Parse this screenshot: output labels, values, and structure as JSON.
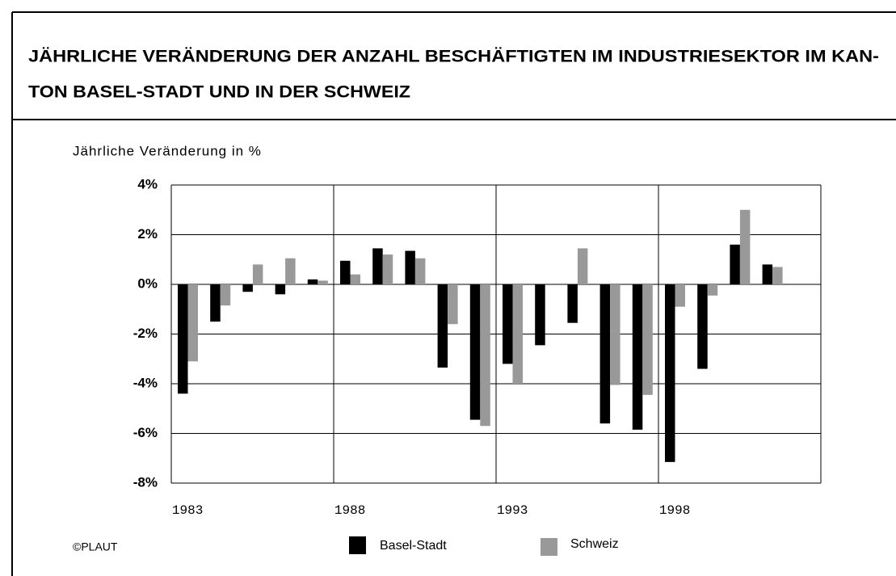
{
  "chart_data": {
    "type": "bar",
    "title": [
      "JÄHRLICHE VERÄNDERUNG DER ANZAHL BESCHÄFTIGTEN IM INDUSTRIESEKTOR IM KAN-",
      "TON BASEL-STADT UND IN DER SCHWEIZ"
    ],
    "y_label": "Jährliche Veränderung in %",
    "source": "©PLAUT",
    "categories": [
      "1983",
      null,
      null,
      null,
      null,
      "1988",
      null,
      null,
      null,
      null,
      "1993",
      null,
      null,
      null,
      null,
      "1998",
      null,
      null,
      null,
      null
    ],
    "series": [
      {
        "name": "Basel-Stadt",
        "color": "#000000",
        "values": [
          -4.4,
          -1.5,
          -0.3,
          -0.4,
          0.2,
          0.95,
          1.45,
          1.35,
          -3.35,
          -5.45,
          -3.2,
          -2.45,
          -1.55,
          -5.6,
          -5.85,
          -7.15,
          -3.4,
          1.6,
          0.8,
          null
        ]
      },
      {
        "name": "Schweiz",
        "color": "#999999",
        "values": [
          -3.1,
          -0.85,
          0.8,
          1.05,
          0.15,
          0.4,
          1.2,
          1.05,
          -1.6,
          -5.7,
          -4.0,
          null,
          1.45,
          -4.05,
          -4.45,
          -0.9,
          -0.45,
          3.0,
          0.7,
          null
        ]
      }
    ],
    "ylim": [
      -8,
      4
    ],
    "yticks": [
      {
        "value": -8,
        "label": "-8%"
      },
      {
        "value": -6,
        "label": "-6%"
      },
      {
        "value": -4,
        "label": "-4%"
      },
      {
        "value": -2,
        "label": "-2%"
      },
      {
        "value": 0,
        "label": "0%"
      },
      {
        "value": 2,
        "label": "2%"
      },
      {
        "value": 4,
        "label": "4%"
      }
    ],
    "grid": true
  }
}
